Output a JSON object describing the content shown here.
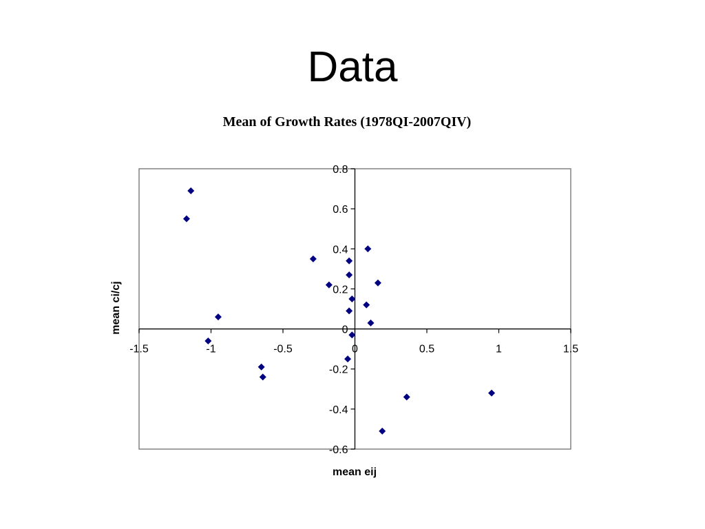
{
  "slide": {
    "title": "Data"
  },
  "chart_data": {
    "type": "scatter",
    "title": "Mean of Growth Rates (1978QI-2007QIV)",
    "xlabel": "mean eij",
    "ylabel": "mean ci/cj",
    "xlim": [
      -1.5,
      1.5
    ],
    "ylim": [
      -0.6,
      0.8
    ],
    "xticks": [
      -1.5,
      -1,
      -0.5,
      0,
      0.5,
      1,
      1.5
    ],
    "yticks": [
      -0.6,
      -0.4,
      -0.2,
      0,
      0.2,
      0.4,
      0.6,
      0.8
    ],
    "xtick_labels": [
      "-1.5",
      "-1",
      "-0.5",
      "0",
      "0.5",
      "1",
      "1.5"
    ],
    "ytick_labels": [
      "-0.6",
      "-0.4",
      "-0.2",
      "0",
      "0.2",
      "0.4",
      "0.6",
      "0.8"
    ],
    "marker": "diamond",
    "marker_color": "#000080",
    "series": [
      {
        "points": [
          {
            "x": -1.14,
            "y": 0.69
          },
          {
            "x": -1.17,
            "y": 0.55
          },
          {
            "x": -0.95,
            "y": 0.06
          },
          {
            "x": -1.02,
            "y": -0.06
          },
          {
            "x": -0.65,
            "y": -0.19
          },
          {
            "x": -0.64,
            "y": -0.24
          },
          {
            "x": -0.29,
            "y": 0.35
          },
          {
            "x": -0.18,
            "y": 0.22
          },
          {
            "x": -0.04,
            "y": 0.34
          },
          {
            "x": -0.04,
            "y": 0.27
          },
          {
            "x": -0.04,
            "y": 0.09
          },
          {
            "x": -0.02,
            "y": 0.15
          },
          {
            "x": -0.02,
            "y": -0.03
          },
          {
            "x": -0.05,
            "y": -0.15
          },
          {
            "x": 0.09,
            "y": 0.4
          },
          {
            "x": 0.16,
            "y": 0.23
          },
          {
            "x": 0.08,
            "y": 0.12
          },
          {
            "x": 0.11,
            "y": 0.03
          },
          {
            "x": 0.36,
            "y": -0.34
          },
          {
            "x": 0.19,
            "y": -0.51
          },
          {
            "x": 0.95,
            "y": -0.32
          }
        ]
      }
    ]
  }
}
